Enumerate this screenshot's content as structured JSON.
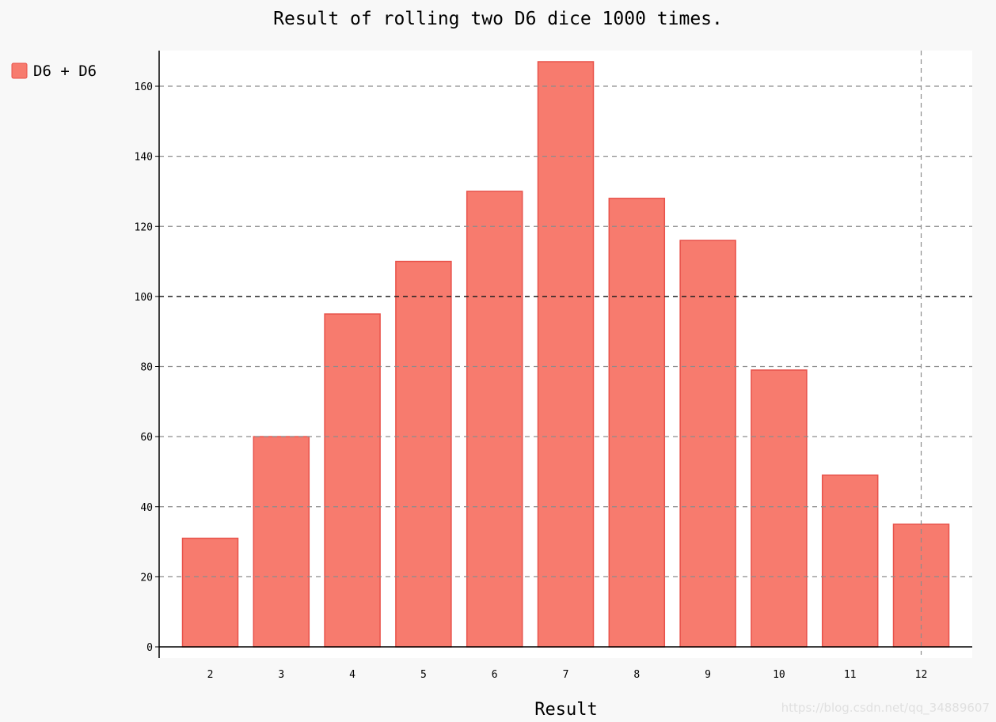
{
  "chart_data": {
    "type": "bar",
    "title": "Result of rolling two D6 dice 1000 times.",
    "xlabel": "Result",
    "ylabel": "",
    "categories": [
      "2",
      "3",
      "4",
      "5",
      "6",
      "7",
      "8",
      "9",
      "10",
      "11",
      "12"
    ],
    "series": [
      {
        "name": "D6 + D6",
        "values": [
          31,
          60,
          95,
          110,
          130,
          167,
          128,
          116,
          79,
          49,
          35
        ],
        "color": "#f77b6e"
      }
    ],
    "ylim": [
      0,
      170
    ],
    "yticks": [
      0,
      20,
      40,
      60,
      80,
      100,
      120,
      140,
      160
    ],
    "grid": true,
    "legend_position": "top-left",
    "colors": {
      "bar_fill": "#f77b6e",
      "bar_stroke": "#e8524a",
      "plot_background": "#ffffff",
      "page_background": "#f8f8f8"
    }
  },
  "watermark": "https://blog.csdn.net/qq_34889607"
}
